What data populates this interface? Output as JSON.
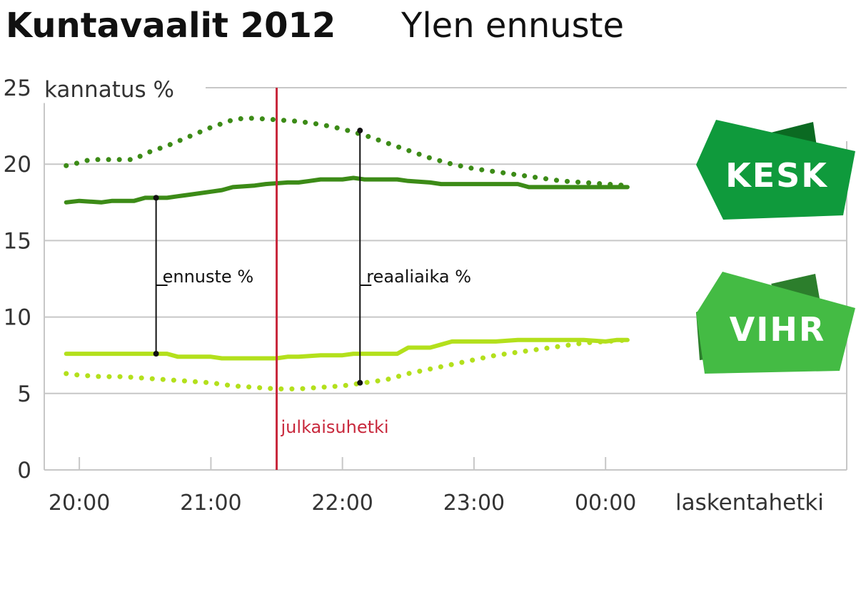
{
  "title": {
    "bold": "Kuntavaalit 2012",
    "light": "Ylen ennuste"
  },
  "colors": {
    "kesk": "#3c8b17",
    "vihr": "#b3e01c",
    "publication": "#c8283c",
    "grid": "#c7c7c7",
    "kesk_badge": "#0f9a3c",
    "kesk_badge_dark": "#0b6a22",
    "vihr_badge": "#44bb44",
    "vihr_badge_dark": "#2c7e2c"
  },
  "chart_data": {
    "type": "line",
    "ylabel": "kannatus %",
    "xlabel": "laskentahetki",
    "ylim": [
      0,
      25
    ],
    "yticks": [
      "0",
      "5",
      "10",
      "15",
      "20",
      "25"
    ],
    "xticks": [
      "20:00",
      "21:00",
      "22:00",
      "23:00",
      "00:00"
    ],
    "xlim": [
      "19:44",
      "01:50"
    ],
    "grid": true,
    "publication_time": {
      "x": "21:30",
      "label": "julkaisuhetki"
    },
    "annotations": [
      {
        "text": "ennuste %",
        "x": "20:35",
        "y_top": 17.8,
        "y_bottom": 7.6
      },
      {
        "text": "reaaliaika %",
        "x": "22:08",
        "y_top": 22.2,
        "y_bottom": 5.7
      }
    ],
    "series": [
      {
        "name": "KESK",
        "style": "solid",
        "color_key": "kesk",
        "x": [
          "19:54",
          "20:00",
          "20:10",
          "20:15",
          "20:25",
          "20:30",
          "20:35",
          "20:40",
          "20:45",
          "20:50",
          "21:00",
          "21:05",
          "21:10",
          "21:20",
          "21:25",
          "21:35",
          "21:40",
          "21:45",
          "21:50",
          "22:00",
          "22:05",
          "22:10",
          "22:15",
          "22:20",
          "22:25",
          "22:30",
          "22:40",
          "22:45",
          "22:50",
          "23:00",
          "23:10",
          "23:15",
          "23:20",
          "23:25",
          "23:40",
          "00:00",
          "00:05",
          "00:10"
        ],
        "values": [
          17.5,
          17.6,
          17.5,
          17.6,
          17.6,
          17.8,
          17.8,
          17.8,
          17.9,
          18.0,
          18.2,
          18.3,
          18.5,
          18.6,
          18.7,
          18.8,
          18.8,
          18.9,
          19.0,
          19.0,
          19.1,
          19.0,
          19.0,
          19.0,
          19.0,
          18.9,
          18.8,
          18.7,
          18.7,
          18.7,
          18.7,
          18.7,
          18.7,
          18.5,
          18.5,
          18.5,
          18.5,
          18.5
        ]
      },
      {
        "name": "KESK",
        "style": "dotted",
        "color_key": "kesk",
        "x": [
          "19:54",
          "20:00",
          "20:05",
          "20:10",
          "20:20",
          "20:25",
          "20:30",
          "20:40",
          "20:50",
          "21:00",
          "21:10",
          "21:15",
          "21:20",
          "21:30",
          "21:40",
          "21:50",
          "22:00",
          "22:10",
          "22:20",
          "22:30",
          "22:40",
          "22:50",
          "23:00",
          "23:10",
          "23:20",
          "23:30",
          "23:40",
          "23:50",
          "00:00",
          "00:10"
        ],
        "values": [
          19.9,
          20.1,
          20.3,
          20.3,
          20.3,
          20.3,
          20.7,
          21.2,
          21.8,
          22.4,
          22.9,
          23.0,
          23.0,
          22.9,
          22.8,
          22.6,
          22.3,
          21.9,
          21.4,
          20.9,
          20.4,
          20.0,
          19.7,
          19.5,
          19.3,
          19.1,
          18.9,
          18.8,
          18.7,
          18.6
        ]
      },
      {
        "name": "VIHR",
        "style": "solid",
        "color_key": "vihr",
        "x": [
          "19:54",
          "20:00",
          "20:10",
          "20:20",
          "20:30",
          "20:40",
          "20:45",
          "20:50",
          "21:00",
          "21:05",
          "21:10",
          "21:20",
          "21:30",
          "21:35",
          "21:40",
          "21:50",
          "21:55",
          "22:00",
          "22:05",
          "22:10",
          "22:20",
          "22:25",
          "22:30",
          "22:40",
          "22:45",
          "22:50",
          "23:00",
          "23:10",
          "23:20",
          "23:30",
          "23:40",
          "23:50",
          "00:00",
          "00:05",
          "00:10"
        ],
        "values": [
          7.6,
          7.6,
          7.6,
          7.6,
          7.6,
          7.6,
          7.4,
          7.4,
          7.4,
          7.3,
          7.3,
          7.3,
          7.3,
          7.4,
          7.4,
          7.5,
          7.5,
          7.5,
          7.6,
          7.6,
          7.6,
          7.6,
          8.0,
          8.0,
          8.2,
          8.4,
          8.4,
          8.4,
          8.5,
          8.5,
          8.5,
          8.5,
          8.4,
          8.5,
          8.5
        ]
      },
      {
        "name": "VIHR",
        "style": "dotted",
        "color_key": "vihr",
        "x": [
          "19:54",
          "20:00",
          "20:10",
          "20:20",
          "20:30",
          "20:40",
          "20:50",
          "21:00",
          "21:10",
          "21:20",
          "21:30",
          "21:40",
          "21:50",
          "22:00",
          "22:10",
          "22:20",
          "22:30",
          "22:40",
          "22:50",
          "23:00",
          "23:10",
          "23:20",
          "23:30",
          "23:40",
          "23:50",
          "00:00",
          "00:10"
        ],
        "values": [
          6.3,
          6.2,
          6.1,
          6.1,
          6.0,
          5.9,
          5.8,
          5.7,
          5.5,
          5.4,
          5.3,
          5.3,
          5.4,
          5.5,
          5.7,
          5.9,
          6.3,
          6.6,
          6.9,
          7.2,
          7.5,
          7.7,
          7.9,
          8.1,
          8.3,
          8.4,
          8.5
        ]
      }
    ]
  },
  "badges": [
    {
      "label": "KESK"
    },
    {
      "label": "VIHR"
    }
  ]
}
